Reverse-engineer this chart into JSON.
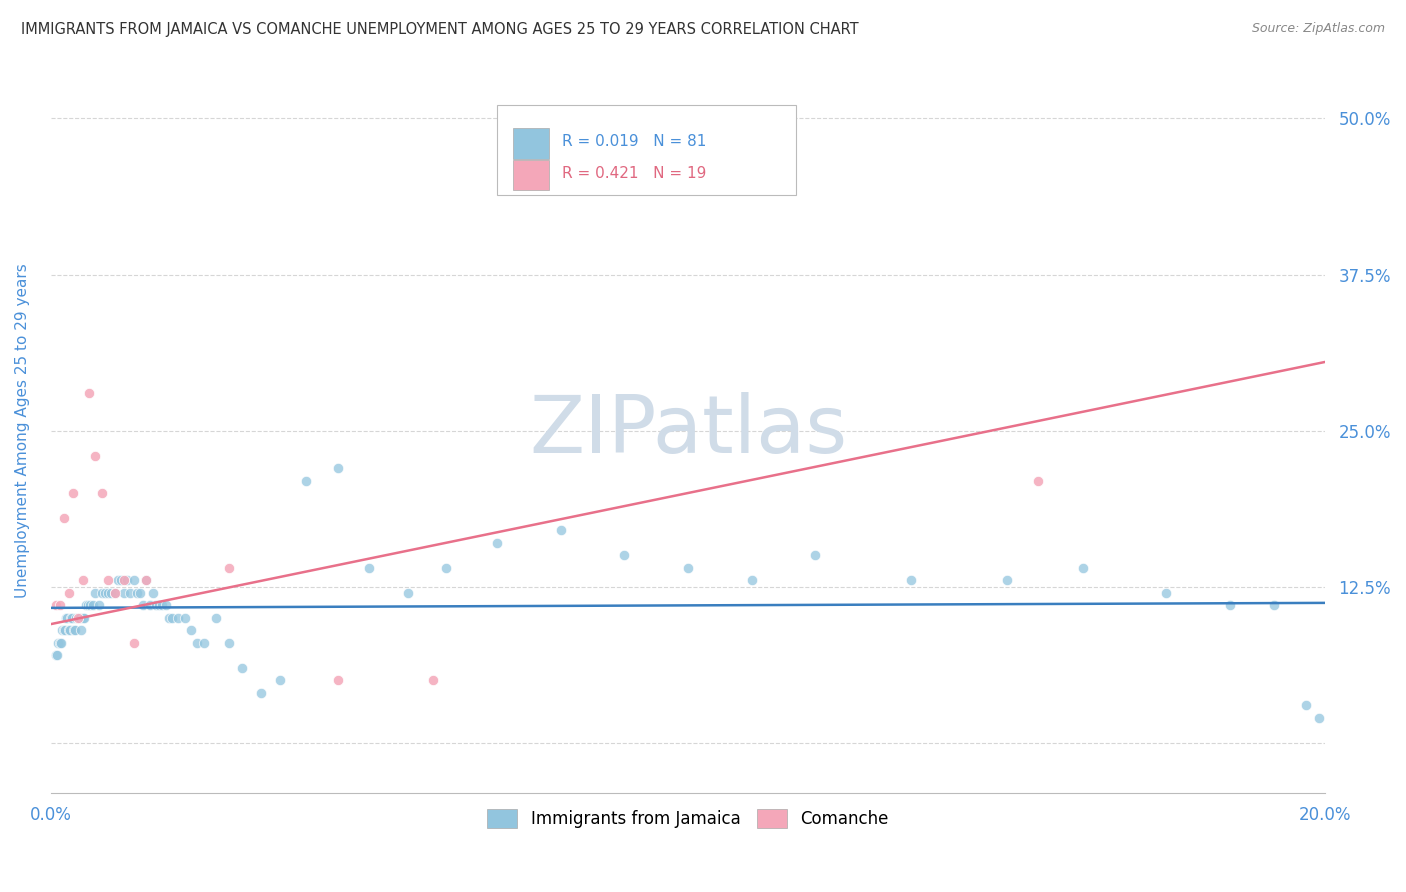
{
  "title": "IMMIGRANTS FROM JAMAICA VS COMANCHE UNEMPLOYMENT AMONG AGES 25 TO 29 YEARS CORRELATION CHART",
  "source": "Source: ZipAtlas.com",
  "ylabel": "Unemployment Among Ages 25 to 29 years",
  "xlim": [
    0.0,
    0.2
  ],
  "ylim": [
    -0.04,
    0.54
  ],
  "yticks": [
    0.0,
    0.125,
    0.25,
    0.375,
    0.5
  ],
  "ytick_labels": [
    "",
    "12.5%",
    "25.0%",
    "37.5%",
    "50.0%"
  ],
  "xticks": [
    0.0,
    0.04,
    0.08,
    0.12,
    0.16,
    0.2
  ],
  "xtick_labels": [
    "0.0%",
    "",
    "",
    "",
    "",
    "20.0%"
  ],
  "legend_r1": "R = 0.019",
  "legend_n1": "N = 81",
  "legend_r2": "R = 0.421",
  "legend_n2": "N = 19",
  "blue_color": "#92c5de",
  "pink_color": "#f4a7b9",
  "line_blue": "#3a7ebf",
  "line_pink": "#e8708a",
  "title_color": "#333333",
  "axis_label_color": "#4a90d9",
  "watermark_color": "#d0dce8",
  "background_color": "#ffffff",
  "grid_color": "#cccccc",
  "blue_scatter_x": [
    0.0008,
    0.001,
    0.0012,
    0.0014,
    0.0016,
    0.0018,
    0.002,
    0.0022,
    0.0024,
    0.0026,
    0.0028,
    0.003,
    0.0032,
    0.0034,
    0.0036,
    0.0038,
    0.004,
    0.0042,
    0.0044,
    0.0046,
    0.0048,
    0.005,
    0.0052,
    0.0055,
    0.0058,
    0.0062,
    0.0066,
    0.007,
    0.0075,
    0.008,
    0.0085,
    0.009,
    0.0095,
    0.01,
    0.0105,
    0.011,
    0.0115,
    0.012,
    0.0125,
    0.013,
    0.0135,
    0.014,
    0.0145,
    0.015,
    0.0155,
    0.016,
    0.0165,
    0.017,
    0.0175,
    0.018,
    0.0185,
    0.019,
    0.02,
    0.021,
    0.022,
    0.023,
    0.024,
    0.026,
    0.028,
    0.03,
    0.033,
    0.036,
    0.04,
    0.045,
    0.05,
    0.056,
    0.062,
    0.07,
    0.08,
    0.09,
    0.1,
    0.11,
    0.12,
    0.135,
    0.15,
    0.162,
    0.175,
    0.185,
    0.192,
    0.197,
    0.199
  ],
  "blue_scatter_y": [
    0.07,
    0.07,
    0.08,
    0.08,
    0.08,
    0.09,
    0.09,
    0.09,
    0.1,
    0.1,
    0.09,
    0.09,
    0.1,
    0.1,
    0.09,
    0.09,
    0.1,
    0.1,
    0.1,
    0.1,
    0.09,
    0.1,
    0.1,
    0.11,
    0.11,
    0.11,
    0.11,
    0.12,
    0.11,
    0.12,
    0.12,
    0.12,
    0.12,
    0.12,
    0.13,
    0.13,
    0.12,
    0.13,
    0.12,
    0.13,
    0.12,
    0.12,
    0.11,
    0.13,
    0.11,
    0.12,
    0.11,
    0.11,
    0.11,
    0.11,
    0.1,
    0.1,
    0.1,
    0.1,
    0.09,
    0.08,
    0.08,
    0.1,
    0.08,
    0.06,
    0.04,
    0.05,
    0.21,
    0.22,
    0.14,
    0.12,
    0.14,
    0.16,
    0.17,
    0.15,
    0.14,
    0.13,
    0.15,
    0.13,
    0.13,
    0.14,
    0.12,
    0.11,
    0.11,
    0.03,
    0.02
  ],
  "pink_scatter_x": [
    0.0008,
    0.0015,
    0.002,
    0.0028,
    0.0035,
    0.0042,
    0.005,
    0.006,
    0.007,
    0.008,
    0.009,
    0.01,
    0.0115,
    0.013,
    0.015,
    0.028,
    0.045,
    0.06,
    0.155
  ],
  "pink_scatter_y": [
    0.11,
    0.11,
    0.18,
    0.12,
    0.2,
    0.1,
    0.13,
    0.28,
    0.23,
    0.2,
    0.13,
    0.12,
    0.13,
    0.08,
    0.13,
    0.14,
    0.05,
    0.05,
    0.21
  ],
  "blue_line_x": [
    0.0,
    0.2
  ],
  "blue_line_y": [
    0.108,
    0.112
  ],
  "pink_line_x": [
    0.0,
    0.2
  ],
  "pink_line_y": [
    0.095,
    0.305
  ]
}
